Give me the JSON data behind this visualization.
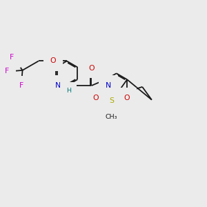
{
  "bg_color": "#ebebeb",
  "bond_color": "#1a1a1a",
  "bond_lw": 1.3,
  "dbo": 0.05,
  "atom_colors": {
    "F": "#cc00cc",
    "O": "#cc0000",
    "N": "#0000cc",
    "NH": "#0000cc",
    "H": "#007777",
    "S": "#aaaa00",
    "C": "#1a1a1a"
  },
  "fs": 7.8,
  "fs_small": 6.8
}
